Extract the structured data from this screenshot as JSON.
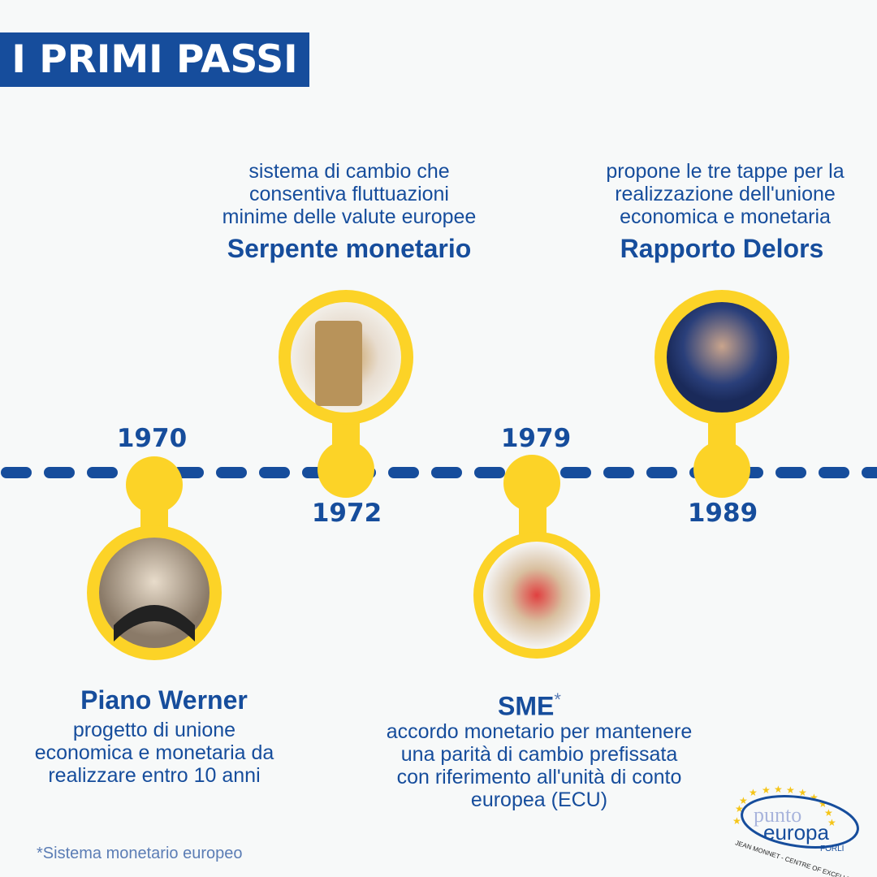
{
  "title": "I PRIMI PASSI",
  "colors": {
    "blue": "#164d9c",
    "yellow": "#fcd327",
    "background": "#f7f9f9"
  },
  "events": [
    {
      "year": "1970",
      "title": "Piano Werner",
      "lines": [
        "progetto di unione",
        "economica e monetaria da",
        "realizzare entro 10 anni"
      ],
      "image": "man-signing-document-photo"
    },
    {
      "year": "1972",
      "title": "Serpente monetario",
      "lines": [
        "sistema di cambio che",
        "consentiva fluttuazioni",
        "minime delle valute europee"
      ],
      "image": "coin-stack-photo"
    },
    {
      "year": "1979",
      "title": "SME",
      "title_mark": "*",
      "lines": [
        "accordo monetario per mantenere",
        "una parità di cambio prefissata",
        "con riferimento all'unità di conto",
        "europea (ECU)"
      ],
      "image": "flag-coins-photo"
    },
    {
      "year": "1989",
      "title": "Rapporto Delors",
      "lines": [
        "propone le tre tappe per la",
        "realizzazione dell'unione",
        "economica e monetaria"
      ],
      "image": "man-with-glasses-photo"
    }
  ],
  "footnote": "*Sistema monetario europeo",
  "logo": {
    "line1": "punto",
    "line2": "europa",
    "line3": "FORLÌ",
    "tagline": "JEAN MONNET - CENTRE OF EXCELLENCE"
  }
}
